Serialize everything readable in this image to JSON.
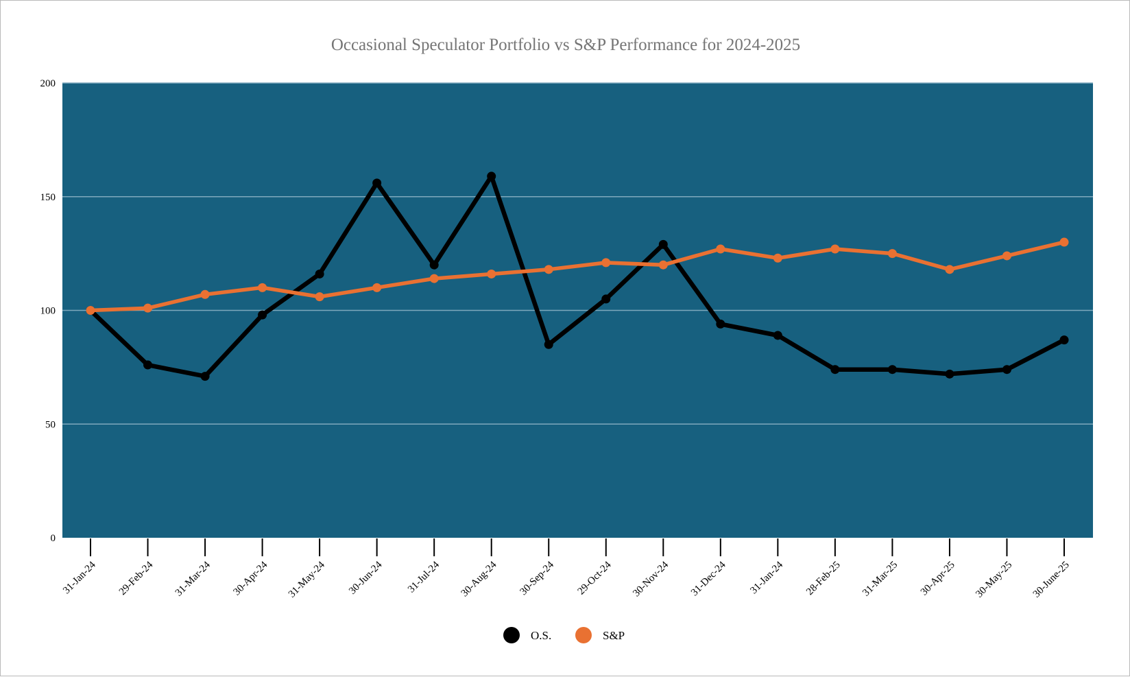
{
  "chart_data": {
    "type": "line",
    "title": "Occasional Speculator Portfolio vs S&P Performance for 2024-2025",
    "xlabel": "",
    "ylabel": "",
    "ylim": [
      0,
      200
    ],
    "yticks": [
      "0",
      "50",
      "100",
      "150",
      "200"
    ],
    "grid": true,
    "legend_position": "bottom",
    "categories": [
      "31-Jan-24",
      "29-Feb-24",
      "31-Mar-24",
      "30-Apr-24",
      "31-May-24",
      "30-Jun-24",
      "31-Jul-24",
      "30-Aug-24",
      "30-Sep-24",
      "29-Oct-24",
      "30-Nov-24",
      "31-Dec-24",
      "31-Jan-24",
      "28-Feb-25",
      "31-Mar-25",
      "30-Apr-25",
      "30-May-25",
      "30-June-25"
    ],
    "series": [
      {
        "name": "O.S.",
        "color": "#000000",
        "values": [
          100,
          76,
          71,
          98,
          116,
          156,
          120,
          159,
          85,
          105,
          129,
          94,
          89,
          74,
          74,
          72,
          74,
          87
        ]
      },
      {
        "name": "S&P",
        "color": "#e97132",
        "values": [
          100,
          101,
          107,
          110,
          106,
          110,
          114,
          116,
          118,
          121,
          120,
          127,
          123,
          127,
          125,
          118,
          124,
          130
        ]
      }
    ],
    "colors": {
      "plot_background": "#17607f",
      "gridline": "#7fa9bd",
      "title": "#757575"
    }
  }
}
